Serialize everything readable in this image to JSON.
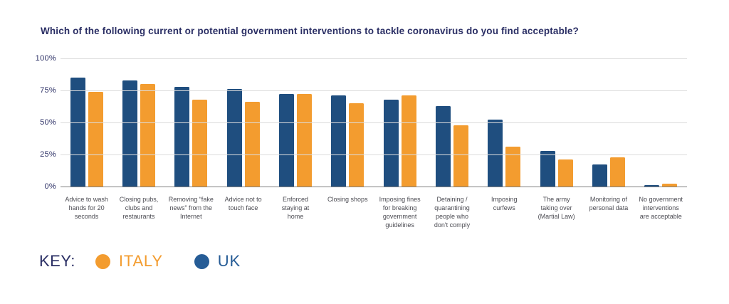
{
  "title": "Which of the following current or potential government interventions to tackle coronavirus do you find acceptable?",
  "chart_data": {
    "type": "bar",
    "title": "Which of the following current or potential government interventions to tackle coronavirus do you find acceptable?",
    "categories": [
      "Advice to wash hands for 20 seconds",
      "Closing pubs, clubs and restaurants",
      "Removing “fake news” from the Internet",
      "Advice not to touch face",
      "Enforced staying at home",
      "Closing shops",
      "Imposing fines for breaking government guidelines",
      "Detaining / quarantining people who don't comply",
      "Imposing curfews",
      "The army taking over (Martial Law)",
      "Monitoring of personal data",
      "No government interventions are acceptable"
    ],
    "series": [
      {
        "name": "UK",
        "color": "#1F4E7F",
        "values": [
          85,
          83,
          78,
          76,
          72,
          71,
          68,
          63,
          52,
          28,
          17,
          1
        ]
      },
      {
        "name": "ITALY",
        "color": "#F39C2F",
        "values": [
          74,
          80,
          68,
          66,
          72,
          65,
          71,
          48,
          31,
          21,
          23,
          2
        ]
      }
    ],
    "xlabel": "",
    "ylabel": "",
    "ylim": [
      0,
      100
    ],
    "yticks": [
      {
        "label": "100%",
        "value": 100
      },
      {
        "label": "75%",
        "value": 75
      },
      {
        "label": "50%",
        "value": 50
      },
      {
        "label": "25%",
        "value": 25
      },
      {
        "label": "0%",
        "value": 0
      }
    ],
    "grid": true,
    "legend_position": "bottom-left"
  },
  "legend": {
    "key_label": "KEY:",
    "items": [
      {
        "label": "ITALY",
        "color": "#F39C2F"
      },
      {
        "label": "UK",
        "color": "#265C96"
      }
    ]
  },
  "colors": {
    "background": "#FFFFFF",
    "title_text": "#2A2E64",
    "axis_tick_text": "#2A2E64",
    "category_text": "#4B4B52",
    "gridline": "#DCDCDC",
    "axis_line": "#7F7F7F",
    "uk_bar": "#1F4E7F",
    "italy_bar": "#F39C2F"
  }
}
